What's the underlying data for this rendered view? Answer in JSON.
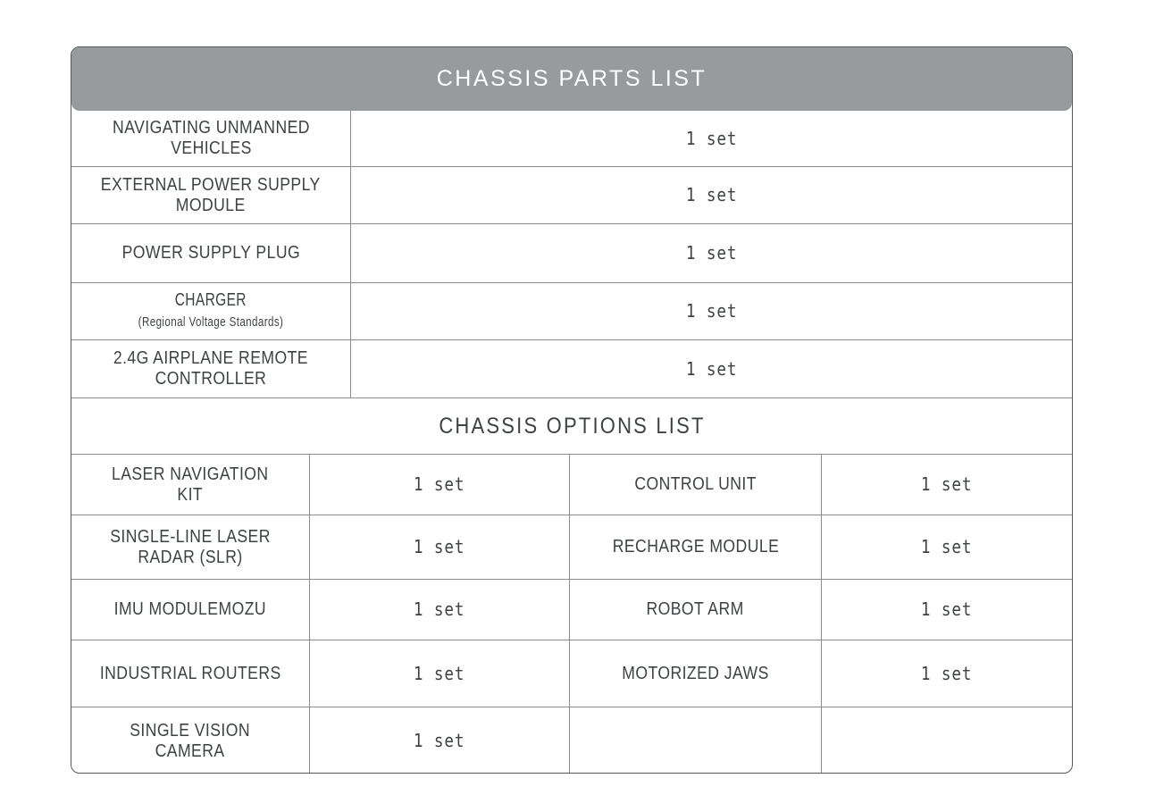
{
  "title": "CHASSIS PARTS LIST",
  "parts": [
    {
      "name": "NAVIGATING UNMANNED\nVEHICLES",
      "qty": "1 set"
    },
    {
      "name": "EXTERNAL POWER SUPPLY\nMODULE",
      "qty": "1 set"
    },
    {
      "name": "POWER SUPPLY PLUG",
      "qty": "1 set"
    },
    {
      "name": "CHARGER",
      "note": "(Regional Voltage Standards)",
      "qty": "1 set"
    },
    {
      "name": "2.4G AIRPLANE REMOTE\nCONTROLLER",
      "qty": "1 set"
    }
  ],
  "options_title": "CHASSIS OPTIONS LIST",
  "options": [
    {
      "left_name": "LASER NAVIGATION\nKIT",
      "left_qty": "1 set",
      "right_name": "CONTROL UNIT",
      "right_qty": "1 set"
    },
    {
      "left_name": "SINGLE-LINE LASER\nRADAR (SLR)",
      "left_qty": "1 set",
      "right_name": "RECHARGE MODULE",
      "right_qty": "1 set"
    },
    {
      "left_name": "IMU MODULEMOZU",
      "left_qty": "1 set",
      "right_name": "ROBOT ARM",
      "right_qty": "1 set"
    },
    {
      "left_name": "INDUSTRIAL ROUTERS",
      "left_qty": "1 set",
      "right_name": "MOTORIZED JAWS",
      "right_qty": "1 set"
    },
    {
      "left_name": "SINGLE VISION\nCAMERA",
      "left_qty": "1 set",
      "right_name": "",
      "right_qty": ""
    }
  ],
  "colors": {
    "header_bg": "#979b9e",
    "border": "#555555",
    "text": "#3f4244"
  }
}
